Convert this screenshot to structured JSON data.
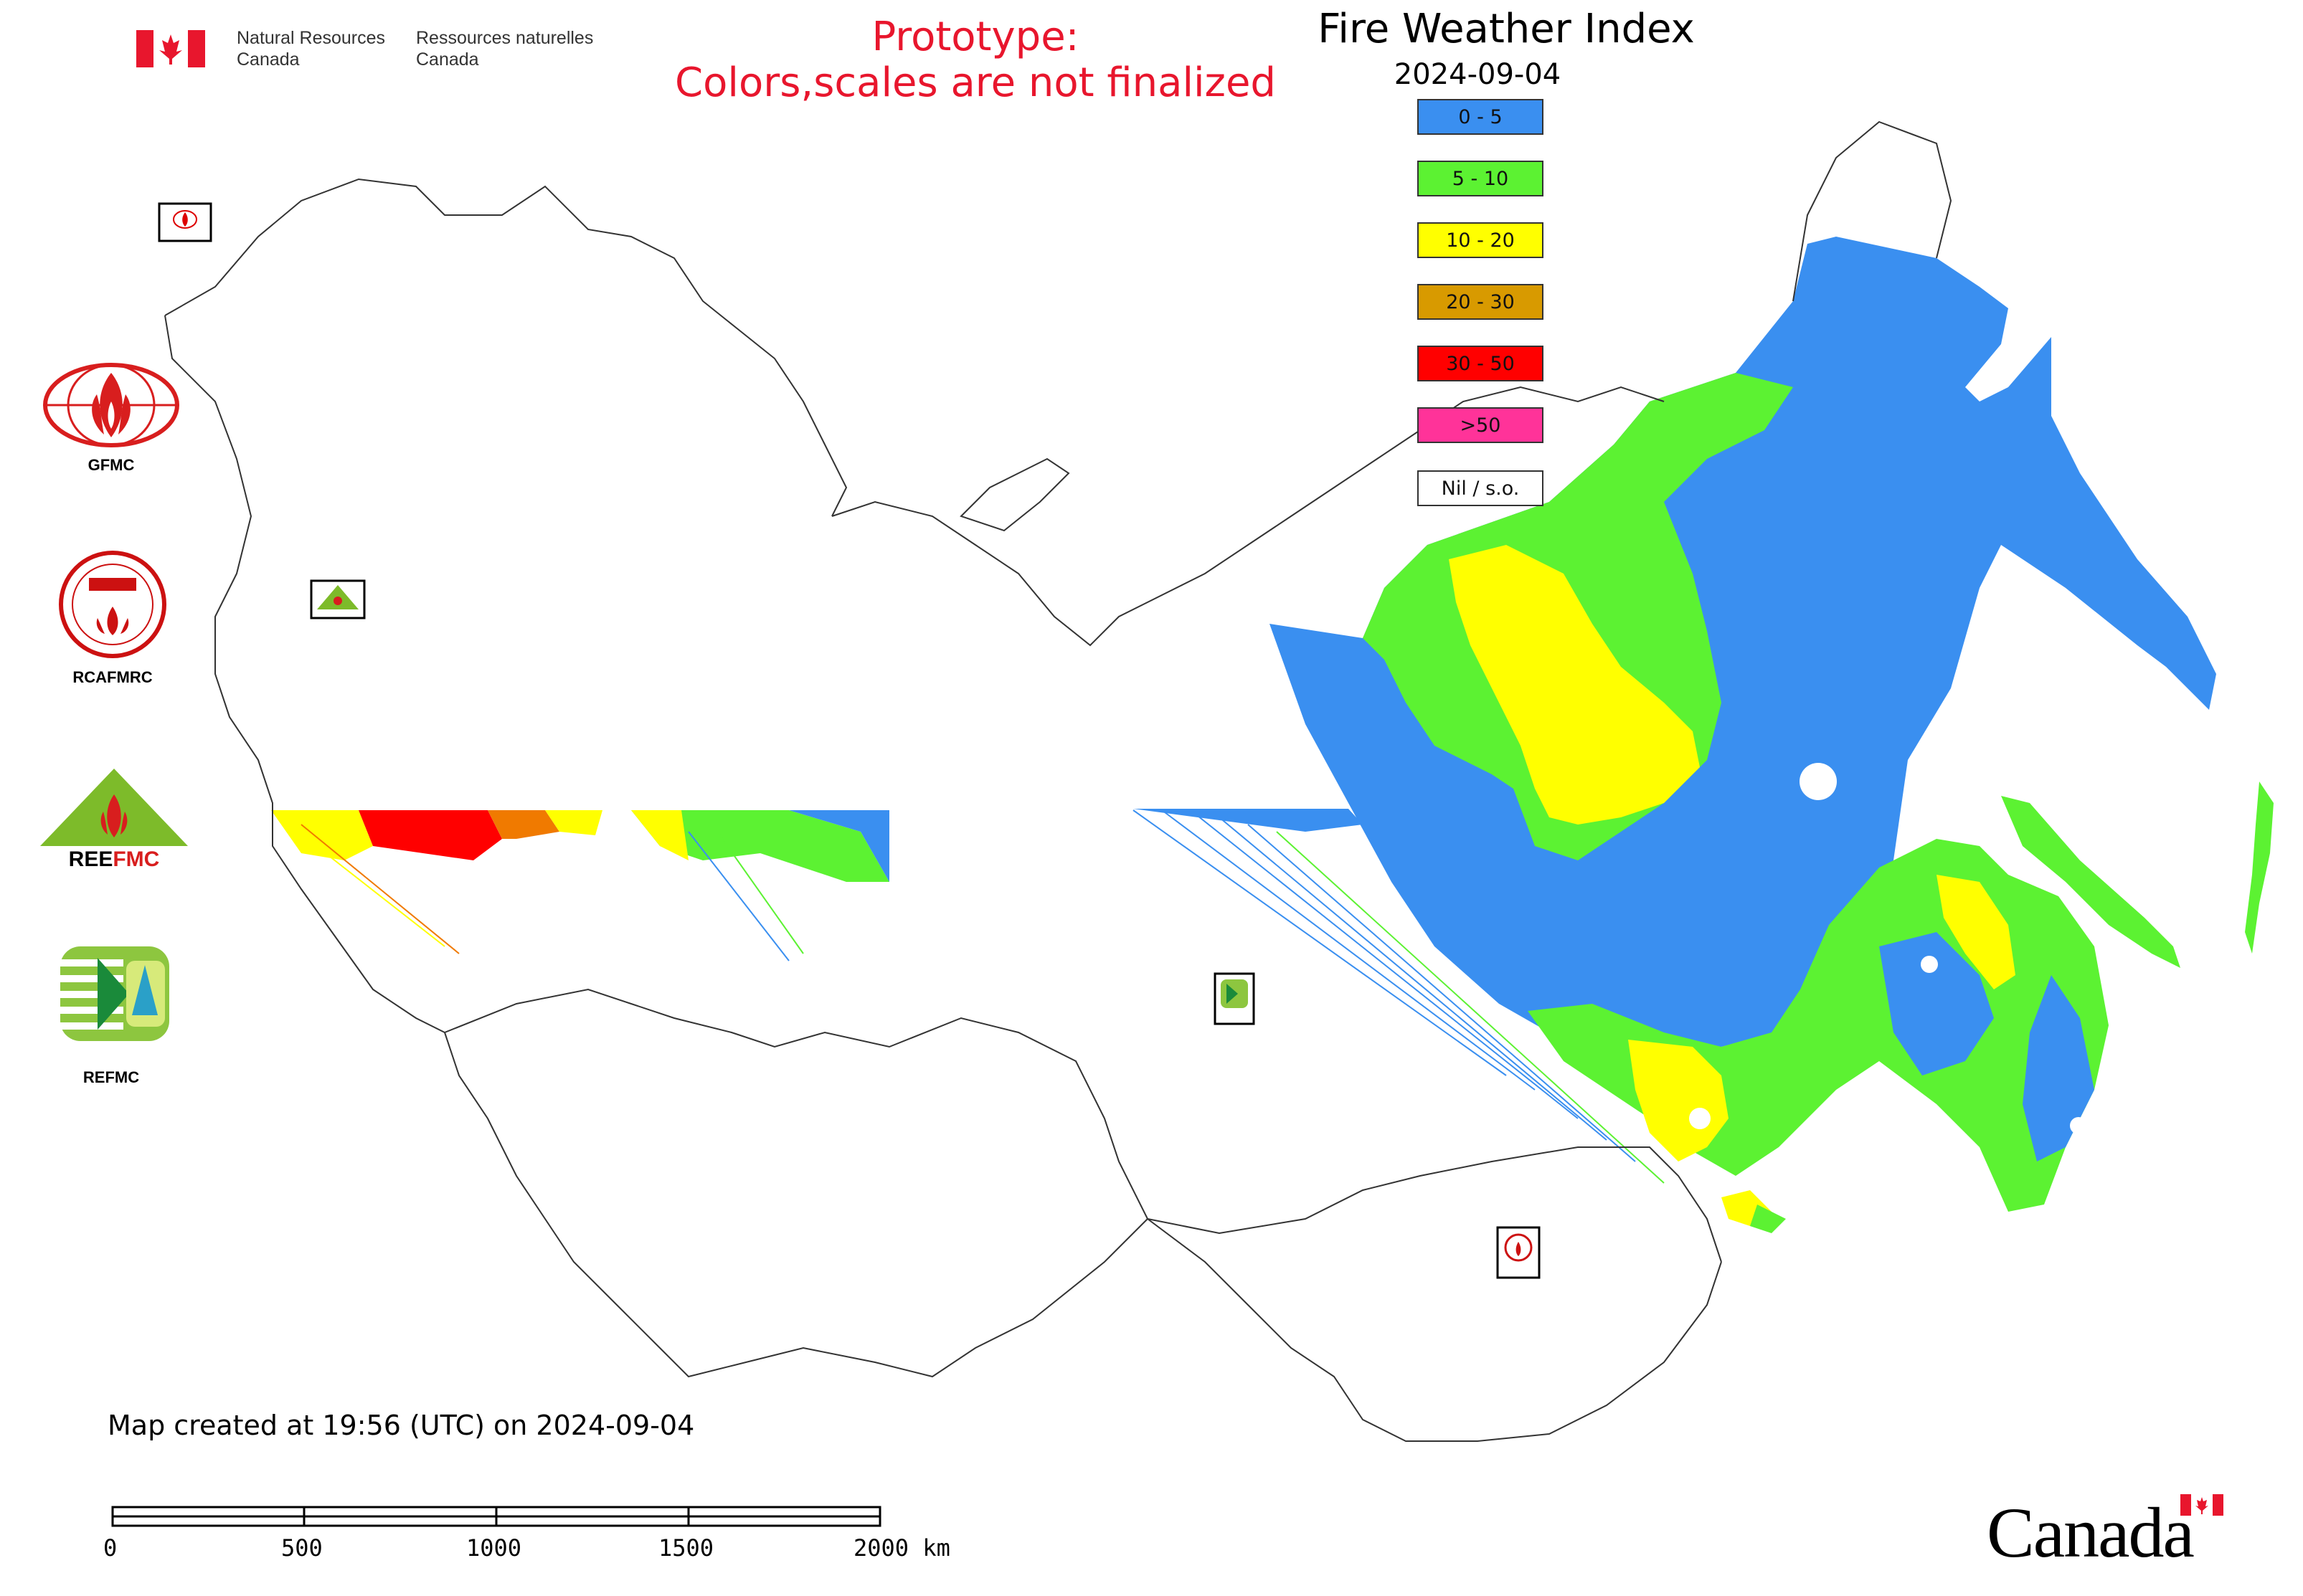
{
  "header": {
    "department_en_line1": "Natural Resources",
    "department_en_line2": "Canada",
    "department_fr_line1": "Ressources naturelles",
    "department_fr_line2": "Canada",
    "prototype_line1": "Prototype:",
    "prototype_line2": "Colors,scales are not finalized"
  },
  "map": {
    "title": "Fire Weather Index",
    "date": "2024-09-04",
    "created": "Map created at 19:56 (UTC) on 2024-09-04"
  },
  "legend": [
    {
      "label": "0 - 5",
      "color": "#3a8ff0"
    },
    {
      "label": "5 - 10",
      "color": "#5cf232"
    },
    {
      "label": "10 - 20",
      "color": "#ffff00"
    },
    {
      "label": "20 - 30",
      "color": "#d89a00"
    },
    {
      "label": "30 - 50",
      "color": "#ff0000"
    },
    {
      "label": ">50",
      "color": "#ff3399"
    },
    {
      "label": "Nil / s.o.",
      "color": "#ffffff"
    }
  ],
  "logos": {
    "gfmc": "GFMC",
    "rcafmrc": "RCAFMRC",
    "reefmc": "REEFMC",
    "refmc": "REFMC"
  },
  "scale_bar": {
    "labels": [
      "0",
      "500",
      "1000",
      "1500",
      "2000 km"
    ]
  },
  "footer": {
    "wordmark": "Canada"
  }
}
